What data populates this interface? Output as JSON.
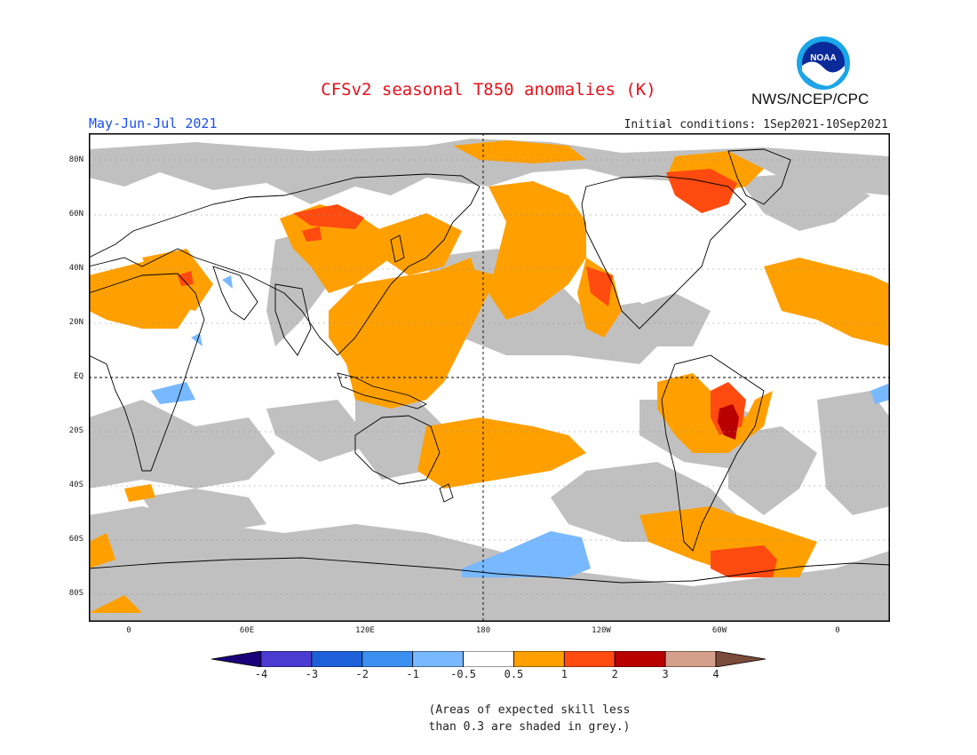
{
  "header": {
    "title": "CFSv2 seasonal T850 anomalies (K)",
    "agency": "NWS/NCEP/CPC",
    "period": "May-Jun-Jul 2021",
    "initial_conditions": "Initial conditions: 1Sep2021-10Sep2021",
    "logo_text": "NOAA"
  },
  "map": {
    "lat_labels": [
      "80N",
      "60N",
      "40N",
      "20N",
      "EQ",
      "20S",
      "40S",
      "60S",
      "80S"
    ],
    "lon_labels": [
      "0",
      "60E",
      "120E",
      "180",
      "120W",
      "60W",
      "0"
    ],
    "colors": {
      "grey_low_skill": "#c0c0c0",
      "neutral": "#ffffff",
      "warm_0_5": "#ffa000",
      "warm_1": "#ff4a10",
      "warm_2": "#b80000",
      "cool_0_5": "#78b8ff",
      "coast": "#000000",
      "grid": "#000000"
    }
  },
  "legend": {
    "labels": [
      "-4",
      "-3",
      "-2",
      "-1",
      "-0.5",
      "0.5",
      "1",
      "2",
      "3",
      "4"
    ],
    "colors": [
      "#1a0078",
      "#4a3cd0",
      "#1e60d8",
      "#3c8ff0",
      "#78b8ff",
      "#ffffff",
      "#ffa000",
      "#ff4a10",
      "#b80000",
      "#d4a08c",
      "#7a4a3a"
    ]
  },
  "note": {
    "line1": "(Areas of expected skill less",
    "line2": "than 0.3 are shaded in grey.)"
  }
}
